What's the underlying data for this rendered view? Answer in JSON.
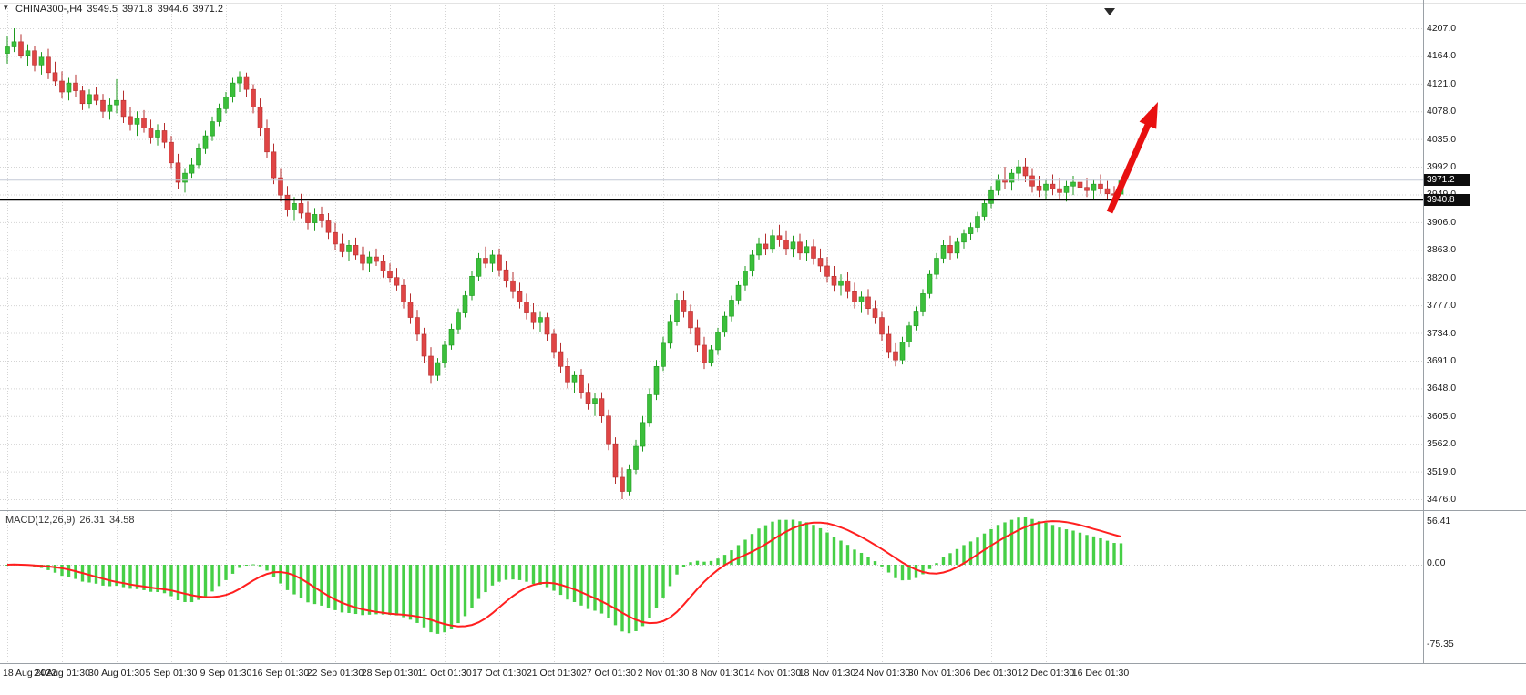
{
  "header": {
    "symbol_period": "CHINA300-,H4",
    "open": "3949.5",
    "high": "3971.8",
    "low": "3944.6",
    "close": "3971.2"
  },
  "price_axis": {
    "last_price_label": "3971.2",
    "hline_price_label": "3940.8"
  },
  "macd_panel": {
    "label": "MACD(12,26,9)",
    "main_value": "26.31",
    "signal_value": "34.58",
    "axis_labels": [
      "56.41",
      "0.00",
      "-75.35"
    ]
  },
  "colors": {
    "up": "#3bbf3b",
    "up_border": "#1f9a1f",
    "down": "#df4545",
    "down_border": "#b52f2f",
    "macd_bar": "#46cf46",
    "macd_signal": "#ff1f1f",
    "arrow": "#e81010",
    "grid": "#d4d4d4",
    "hline": "#000000",
    "last_price_line": "#c3c9d6",
    "tag_bg": "#0d0d0d",
    "separator": "#9aa0a6"
  },
  "chart_data": {
    "type": "candlestick",
    "instrument": "CHINA300-",
    "timeframe": "H4",
    "title": "CHINA300-,H4 3949.5 3971.8 3944.6 3971.2",
    "ylim": [
      3476,
      4207
    ],
    "grid": true,
    "last_price": 3971.2,
    "hline_price": 3940.8,
    "price_gridlines": [
      4207,
      4164,
      4121,
      4078,
      4035,
      3992,
      3949,
      3906,
      3863,
      3820,
      3777,
      3734,
      3691,
      3648,
      3605,
      3562,
      3519,
      3476
    ],
    "x_tick_every": 8,
    "categories": [
      "18 Aug 2022",
      "24 Aug 01:30",
      "30 Aug 01:30",
      "5 Sep 01:30",
      "9 Sep 01:30",
      "16 Sep 01:30",
      "22 Sep 01:30",
      "28 Sep 01:30",
      "11 Oct 01:30",
      "17 Oct 01:30",
      "21 Oct 01:30",
      "27 Oct 01:30",
      "2 Nov 01:30",
      "8 Nov 01:30",
      "14 Nov 01:30",
      "18 Nov 01:30",
      "24 Nov 01:30",
      "30 Nov 01:30",
      "6 Dec 01:30",
      "12 Dec 01:30",
      "16 Dec 01:30"
    ],
    "macd": {
      "params": [
        12,
        26,
        9
      ],
      "main_last": 26.31,
      "signal_last": 34.58,
      "axis": {
        "max": 56.41,
        "zero": 0.0,
        "min": -75.35
      }
    },
    "annotations": [
      {
        "type": "arrow",
        "direction": "up-right",
        "color": "#e81010"
      }
    ],
    "candles": [
      [
        4168,
        4195,
        4152,
        4178
      ],
      [
        4178,
        4207,
        4170,
        4186
      ],
      [
        4186,
        4198,
        4160,
        4165
      ],
      [
        4165,
        4182,
        4148,
        4172
      ],
      [
        4172,
        4180,
        4140,
        4150
      ],
      [
        4150,
        4170,
        4135,
        4162
      ],
      [
        4162,
        4175,
        4128,
        4138
      ],
      [
        4138,
        4155,
        4118,
        4125
      ],
      [
        4125,
        4140,
        4098,
        4108
      ],
      [
        4108,
        4130,
        4095,
        4122
      ],
      [
        4122,
        4135,
        4100,
        4110
      ],
      [
        4110,
        4118,
        4080,
        4090
      ],
      [
        4090,
        4112,
        4082,
        4104
      ],
      [
        4104,
        4116,
        4088,
        4095
      ],
      [
        4095,
        4105,
        4068,
        4078
      ],
      [
        4078,
        4098,
        4065,
        4088
      ],
      [
        4088,
        4128,
        4075,
        4095
      ],
      [
        4095,
        4110,
        4060,
        4070
      ],
      [
        4070,
        4085,
        4048,
        4058
      ],
      [
        4058,
        4078,
        4040,
        4068
      ],
      [
        4068,
        4080,
        4045,
        4052
      ],
      [
        4052,
        4065,
        4028,
        4038
      ],
      [
        4038,
        4058,
        4025,
        4048
      ],
      [
        4048,
        4060,
        4020,
        4030
      ],
      [
        4030,
        4040,
        3990,
        3998
      ],
      [
        3998,
        4012,
        3958,
        3968
      ],
      [
        3968,
        3990,
        3952,
        3982
      ],
      [
        3982,
        4005,
        3975,
        3995
      ],
      [
        3995,
        4028,
        3990,
        4020
      ],
      [
        4020,
        4048,
        4012,
        4040
      ],
      [
        4040,
        4070,
        4032,
        4062
      ],
      [
        4062,
        4090,
        4055,
        4082
      ],
      [
        4082,
        4108,
        4075,
        4100
      ],
      [
        4100,
        4130,
        4092,
        4122
      ],
      [
        4122,
        4140,
        4108,
        4132
      ],
      [
        4132,
        4138,
        4100,
        4112
      ],
      [
        4112,
        4120,
        4075,
        4085
      ],
      [
        4085,
        4098,
        4040,
        4052
      ],
      [
        4052,
        4065,
        4005,
        4015
      ],
      [
        4015,
        4028,
        3965,
        3975
      ],
      [
        3975,
        3990,
        3938,
        3948
      ],
      [
        3948,
        3962,
        3915,
        3925
      ],
      [
        3925,
        3945,
        3908,
        3935
      ],
      [
        3935,
        3950,
        3912,
        3920
      ],
      [
        3920,
        3938,
        3895,
        3905
      ],
      [
        3905,
        3928,
        3892,
        3918
      ],
      [
        3918,
        3930,
        3898,
        3908
      ],
      [
        3908,
        3920,
        3880,
        3890
      ],
      [
        3890,
        3905,
        3862,
        3872
      ],
      [
        3872,
        3888,
        3852,
        3860
      ],
      [
        3860,
        3878,
        3845,
        3870
      ],
      [
        3870,
        3882,
        3848,
        3855
      ],
      [
        3855,
        3868,
        3832,
        3842
      ],
      [
        3842,
        3860,
        3828,
        3852
      ],
      [
        3852,
        3865,
        3838,
        3845
      ],
      [
        3845,
        3855,
        3820,
        3830
      ],
      [
        3830,
        3842,
        3812,
        3820
      ],
      [
        3820,
        3835,
        3800,
        3808
      ],
      [
        3808,
        3818,
        3772,
        3782
      ],
      [
        3782,
        3795,
        3748,
        3758
      ],
      [
        3758,
        3770,
        3722,
        3732
      ],
      [
        3732,
        3742,
        3688,
        3698
      ],
      [
        3698,
        3712,
        3655,
        3668
      ],
      [
        3668,
        3695,
        3660,
        3688
      ],
      [
        3688,
        3722,
        3680,
        3715
      ],
      [
        3715,
        3748,
        3708,
        3740
      ],
      [
        3740,
        3772,
        3732,
        3765
      ],
      [
        3765,
        3800,
        3758,
        3792
      ],
      [
        3792,
        3830,
        3785,
        3822
      ],
      [
        3822,
        3858,
        3815,
        3850
      ],
      [
        3850,
        3868,
        3835,
        3842
      ],
      [
        3842,
        3862,
        3828,
        3855
      ],
      [
        3855,
        3865,
        3822,
        3832
      ],
      [
        3832,
        3845,
        3805,
        3815
      ],
      [
        3815,
        3828,
        3788,
        3798
      ],
      [
        3798,
        3812,
        3772,
        3782
      ],
      [
        3782,
        3795,
        3755,
        3765
      ],
      [
        3765,
        3780,
        3740,
        3750
      ],
      [
        3750,
        3768,
        3735,
        3758
      ],
      [
        3758,
        3765,
        3722,
        3732
      ],
      [
        3732,
        3740,
        3695,
        3705
      ],
      [
        3705,
        3718,
        3672,
        3682
      ],
      [
        3682,
        3695,
        3648,
        3658
      ],
      [
        3658,
        3675,
        3640,
        3668
      ],
      [
        3668,
        3678,
        3632,
        3642
      ],
      [
        3642,
        3655,
        3615,
        3625
      ],
      [
        3625,
        3640,
        3605,
        3632
      ],
      [
        3632,
        3642,
        3595,
        3605
      ],
      [
        3605,
        3615,
        3552,
        3562
      ],
      [
        3562,
        3572,
        3500,
        3510
      ],
      [
        3510,
        3525,
        3476,
        3488
      ],
      [
        3488,
        3530,
        3482,
        3522
      ],
      [
        3522,
        3568,
        3515,
        3558
      ],
      [
        3558,
        3605,
        3550,
        3595
      ],
      [
        3595,
        3648,
        3588,
        3638
      ],
      [
        3638,
        3692,
        3630,
        3682
      ],
      [
        3682,
        3728,
        3675,
        3718
      ],
      [
        3718,
        3762,
        3710,
        3752
      ],
      [
        3752,
        3795,
        3745,
        3785
      ],
      [
        3785,
        3800,
        3758,
        3768
      ],
      [
        3768,
        3778,
        3732,
        3742
      ],
      [
        3742,
        3755,
        3705,
        3715
      ],
      [
        3715,
        3728,
        3678,
        3688
      ],
      [
        3688,
        3715,
        3682,
        3708
      ],
      [
        3708,
        3742,
        3700,
        3735
      ],
      [
        3735,
        3768,
        3728,
        3760
      ],
      [
        3760,
        3792,
        3752,
        3785
      ],
      [
        3785,
        3815,
        3778,
        3808
      ],
      [
        3808,
        3838,
        3800,
        3830
      ],
      [
        3830,
        3862,
        3822,
        3855
      ],
      [
        3855,
        3882,
        3848,
        3872
      ],
      [
        3872,
        3888,
        3855,
        3865
      ],
      [
        3865,
        3895,
        3858,
        3885
      ],
      [
        3885,
        3902,
        3868,
        3878
      ],
      [
        3878,
        3892,
        3855,
        3865
      ],
      [
        3865,
        3885,
        3852,
        3875
      ],
      [
        3875,
        3888,
        3848,
        3858
      ],
      [
        3858,
        3878,
        3845,
        3868
      ],
      [
        3868,
        3880,
        3840,
        3850
      ],
      [
        3850,
        3865,
        3828,
        3838
      ],
      [
        3838,
        3852,
        3812,
        3822
      ],
      [
        3822,
        3838,
        3798,
        3808
      ],
      [
        3808,
        3825,
        3792,
        3815
      ],
      [
        3815,
        3828,
        3788,
        3798
      ],
      [
        3798,
        3812,
        3772,
        3782
      ],
      [
        3782,
        3798,
        3765,
        3790
      ],
      [
        3790,
        3802,
        3762,
        3772
      ],
      [
        3772,
        3785,
        3748,
        3758
      ],
      [
        3758,
        3768,
        3722,
        3732
      ],
      [
        3732,
        3745,
        3695,
        3705
      ],
      [
        3705,
        3718,
        3682,
        3692
      ],
      [
        3692,
        3728,
        3685,
        3720
      ],
      [
        3720,
        3752,
        3712,
        3745
      ],
      [
        3745,
        3775,
        3738,
        3768
      ],
      [
        3768,
        3802,
        3760,
        3795
      ],
      [
        3795,
        3832,
        3788,
        3825
      ],
      [
        3825,
        3858,
        3818,
        3850
      ],
      [
        3850,
        3878,
        3842,
        3870
      ],
      [
        3870,
        3885,
        3848,
        3858
      ],
      [
        3858,
        3882,
        3850,
        3875
      ],
      [
        3875,
        3895,
        3865,
        3888
      ],
      [
        3888,
        3905,
        3878,
        3898
      ],
      [
        3898,
        3922,
        3890,
        3915
      ],
      [
        3915,
        3942,
        3908,
        3935
      ],
      [
        3935,
        3962,
        3928,
        3955
      ],
      [
        3955,
        3980,
        3948,
        3972
      ],
      [
        3972,
        3992,
        3958,
        3968
      ],
      [
        3968,
        3988,
        3955,
        3982
      ],
      [
        3982,
        4002,
        3970,
        3992
      ],
      [
        3992,
        4005,
        3968,
        3978
      ],
      [
        3978,
        3990,
        3952,
        3962
      ],
      [
        3962,
        3978,
        3945,
        3955
      ],
      [
        3955,
        3972,
        3940,
        3965
      ],
      [
        3965,
        3980,
        3948,
        3958
      ],
      [
        3958,
        3975,
        3942,
        3952
      ],
      [
        3952,
        3970,
        3938,
        3962
      ],
      [
        3962,
        3978,
        3948,
        3968
      ],
      [
        3968,
        3982,
        3952,
        3960
      ],
      [
        3960,
        3975,
        3945,
        3955
      ],
      [
        3955,
        3972,
        3942,
        3965
      ],
      [
        3965,
        3980,
        3950,
        3958
      ],
      [
        3958,
        3970,
        3940,
        3950
      ],
      [
        3950,
        3962,
        3935,
        3949.5
      ],
      [
        3949.5,
        3971.8,
        3944.6,
        3971.2
      ]
    ]
  }
}
